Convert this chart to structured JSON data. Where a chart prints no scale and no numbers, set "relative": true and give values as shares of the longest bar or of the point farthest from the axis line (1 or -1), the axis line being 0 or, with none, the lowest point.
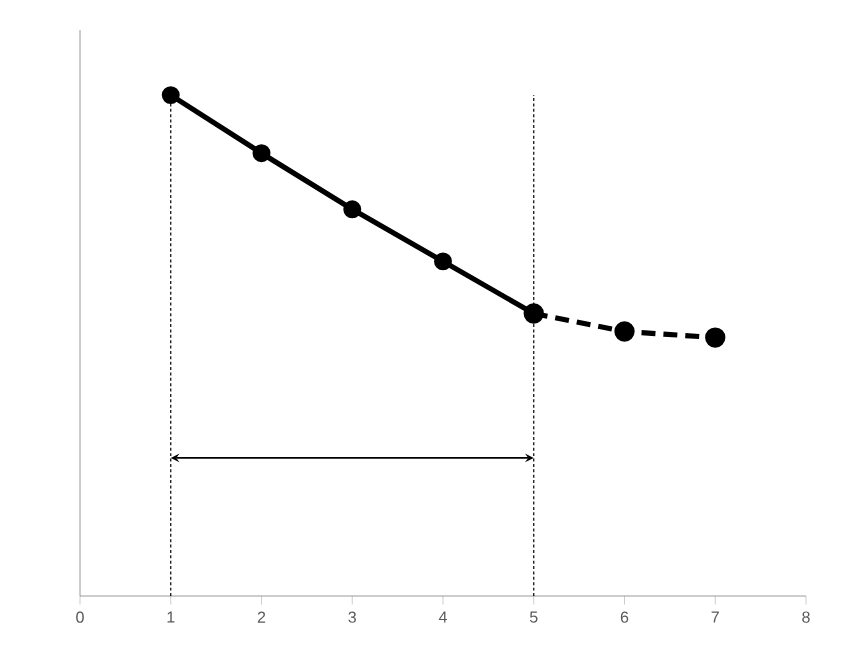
{
  "chart_data": {
    "type": "line",
    "relative": true,
    "xlim": [
      0,
      8
    ],
    "xticks": [
      0,
      1,
      2,
      3,
      4,
      5,
      6,
      7,
      8
    ],
    "tick_labels": "x",
    "marker": "circle",
    "series": [
      {
        "color": "#000000",
        "line_style": "solid",
        "x": [
          1,
          2,
          3,
          4,
          5
        ],
        "values": [
          1,
          0.884,
          0.772,
          0.668,
          0.564
        ]
      },
      {
        "color": "#000000",
        "line_style": "dashed",
        "x": [
          5,
          6,
          7
        ],
        "values": [
          0.564,
          0.528,
          0.516
        ]
      }
    ],
    "ref_lines": [
      {
        "axis": "x",
        "value": 1,
        "line_style": "dashed",
        "color": "#000000"
      },
      {
        "axis": "x",
        "value": 5,
        "line_style": "dashed",
        "color": "#000000"
      }
    ]
  }
}
